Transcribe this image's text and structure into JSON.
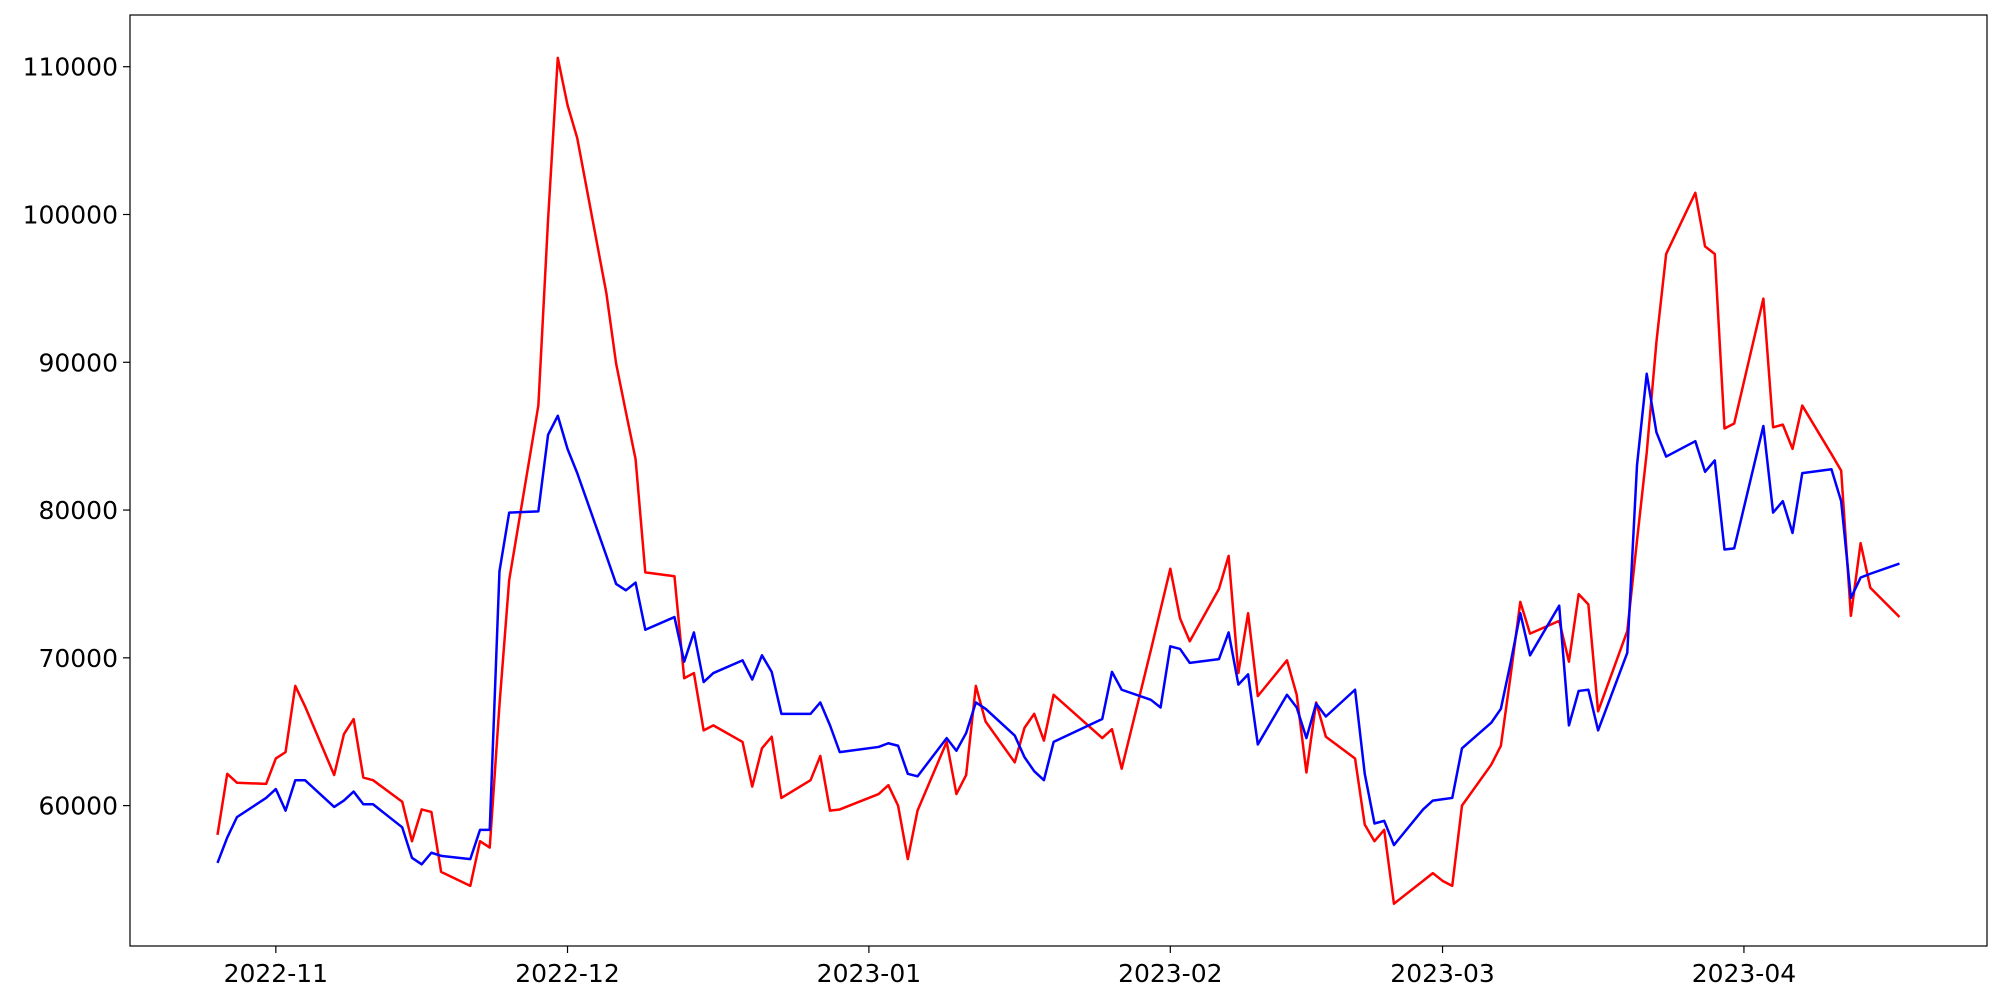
{
  "chart_data": {
    "type": "line",
    "x": [
      "2022-10-26",
      "2022-10-27",
      "2022-10-28",
      "2022-10-31",
      "2022-11-01",
      "2022-11-02",
      "2022-11-03",
      "2022-11-04",
      "2022-11-07",
      "2022-11-08",
      "2022-11-09",
      "2022-11-10",
      "2022-11-11",
      "2022-11-14",
      "2022-11-15",
      "2022-11-16",
      "2022-11-17",
      "2022-11-18",
      "2022-11-21",
      "2022-11-22",
      "2022-11-23",
      "2022-11-24",
      "2022-11-25",
      "2022-11-28",
      "2022-11-29",
      "2022-11-30",
      "2022-12-01",
      "2022-12-02",
      "2022-12-05",
      "2022-12-06",
      "2022-12-07",
      "2022-12-08",
      "2022-12-09",
      "2022-12-12",
      "2022-12-13",
      "2022-12-14",
      "2022-12-15",
      "2022-12-16",
      "2022-12-19",
      "2022-12-20",
      "2022-12-21",
      "2022-12-22",
      "2022-12-23",
      "2022-12-26",
      "2022-12-27",
      "2022-12-28",
      "2022-12-29",
      "2023-01-02",
      "2023-01-03",
      "2023-01-04",
      "2023-01-05",
      "2023-01-06",
      "2023-01-09",
      "2023-01-10",
      "2023-01-11",
      "2023-01-12",
      "2023-01-13",
      "2023-01-16",
      "2023-01-17",
      "2023-01-18",
      "2023-01-19",
      "2023-01-20",
      "2023-01-25",
      "2023-01-26",
      "2023-01-27",
      "2023-01-30",
      "2023-01-31",
      "2023-02-01",
      "2023-02-02",
      "2023-02-03",
      "2023-02-06",
      "2023-02-07",
      "2023-02-08",
      "2023-02-09",
      "2023-02-10",
      "2023-02-13",
      "2023-02-14",
      "2023-02-15",
      "2023-02-16",
      "2023-02-17",
      "2023-02-20",
      "2023-02-21",
      "2023-02-22",
      "2023-02-23",
      "2023-02-24",
      "2023-02-27",
      "2023-02-28",
      "2023-03-01",
      "2023-03-02",
      "2023-03-03",
      "2023-03-06",
      "2023-03-07",
      "2023-03-08",
      "2023-03-09",
      "2023-03-10",
      "2023-03-13",
      "2023-03-14",
      "2023-03-15",
      "2023-03-16",
      "2023-03-17",
      "2023-03-20",
      "2023-03-21",
      "2023-03-22",
      "2023-03-23",
      "2023-03-24",
      "2023-03-27",
      "2023-03-28",
      "2023-03-29",
      "2023-03-30",
      "2023-03-31",
      "2023-04-03",
      "2023-04-04",
      "2023-04-05",
      "2023-04-06",
      "2023-04-07",
      "2023-04-10",
      "2023-04-11",
      "2023-04-12",
      "2023-04-13",
      "2023-04-14",
      "2023-04-17"
    ],
    "series": [
      {
        "color": "#ff0000",
        "values": [
          58020,
          62150,
          61550,
          61470,
          63190,
          63620,
          68100,
          66720,
          62070,
          64830,
          65860,
          61900,
          61720,
          60260,
          57590,
          59740,
          59570,
          55520,
          54570,
          57590,
          57160,
          66810,
          75260,
          87070,
          99660,
          110600,
          107410,
          105170,
          94660,
          89910,
          86640,
          83450,
          75780,
          75520,
          68620,
          68970,
          65090,
          65430,
          64310,
          61290,
          63880,
          64660,
          60520,
          61720,
          63360,
          59660,
          59740,
          60780,
          61380,
          60000,
          56380,
          59660,
          64310,
          60780,
          62070,
          68100,
          65690,
          62930,
          65260,
          66210,
          64400,
          67500,
          64570,
          65170,
          62500,
          70520,
          73280,
          76030,
          72670,
          71120,
          74660,
          76900,
          68970,
          73020,
          67410,
          69830,
          67500,
          62240,
          66980,
          64660,
          63190,
          58710,
          57590,
          58360,
          53360,
          54910,
          55430,
          54910,
          54570,
          60000,
          62760,
          64050,
          68790,
          73790,
          71640,
          72500,
          69740,
          74310,
          73620,
          66380,
          71810,
          77930,
          83880,
          91380,
          97330,
          101470,
          97840,
          97330,
          85520,
          85860,
          94310,
          85600,
          85780,
          84140,
          87070,
          83790,
          82670,
          72840,
          77760,
          74740,
          72760
        ]
      },
      {
        "color": "#0000ff",
        "values": [
          56120,
          57840,
          59220,
          60520,
          61120,
          59660,
          61720,
          61720,
          59910,
          60340,
          60950,
          60090,
          60090,
          58530,
          56470,
          56030,
          56810,
          56600,
          56380,
          58360,
          58360,
          75860,
          79830,
          79910,
          85090,
          86380,
          84140,
          82500,
          76900,
          75000,
          74570,
          75090,
          71900,
          72760,
          69740,
          71720,
          68360,
          68970,
          69830,
          68530,
          70170,
          69050,
          66210,
          66210,
          66980,
          65430,
          63620,
          63970,
          64220,
          64050,
          62150,
          61980,
          64570,
          63710,
          64910,
          66980,
          66550,
          64740,
          63280,
          62330,
          61720,
          64310,
          65860,
          69050,
          67840,
          67160,
          66640,
          70780,
          70600,
          69660,
          69910,
          71720,
          68190,
          68880,
          64140,
          67500,
          66640,
          64570,
          66900,
          66030,
          67840,
          62150,
          58790,
          58970,
          57330,
          59740,
          60340,
          60430,
          60520,
          63880,
          65600,
          66550,
          69660,
          73020,
          70170,
          73530,
          65430,
          67760,
          67840,
          65090,
          70340,
          83020,
          89220,
          85260,
          83620,
          84660,
          82590,
          83360,
          77330,
          77410,
          85690,
          79830,
          80600,
          78450,
          82500,
          82760,
          80600,
          74050,
          75430,
          75690,
          76380
        ]
      }
    ],
    "xlim": [
      "2022-10-17",
      "2023-04-26"
    ],
    "xticks": [
      {
        "value": "2022-11-01",
        "label": "2022-11"
      },
      {
        "value": "2022-12-01",
        "label": "2022-12"
      },
      {
        "value": "2023-01-01",
        "label": "2023-01"
      },
      {
        "value": "2023-02-01",
        "label": "2023-02"
      },
      {
        "value": "2023-03-01",
        "label": "2023-03"
      },
      {
        "value": "2023-04-01",
        "label": "2023-04"
      }
    ],
    "ylim": [
      50500,
      113500
    ],
    "yticks": [
      60000,
      70000,
      80000,
      90000,
      100000,
      110000
    ]
  }
}
